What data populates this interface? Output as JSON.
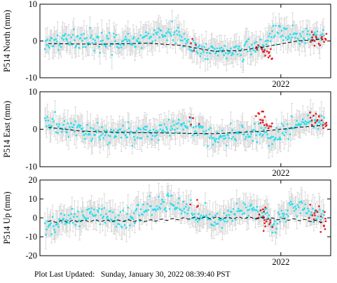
{
  "footer_text": "Plot Last Updated:   Sunday, January 30, 2022 08:39:40 PST",
  "colors": {
    "cyan_points": "#22e0ee",
    "red_points": "#e8141a",
    "error_bars": "#d3d3d3",
    "model_line": "#000000",
    "frame": "#000000"
  },
  "chart_data": [
    {
      "type": "scatter",
      "ylabel": "P514 North (mm)",
      "ylim": [
        -10,
        10
      ],
      "yticks": [
        -10,
        0,
        10
      ],
      "xlim": [
        2020.55,
        2022.3
      ],
      "xticks": [
        2022
      ],
      "xticklabels": [
        "2022"
      ],
      "series": [
        {
          "name": "",
          "color": "cyan",
          "style": "points with grey error bars",
          "x": [
            2020.6,
            2020.75,
            2020.9,
            2021.05,
            2021.2,
            2021.35,
            2021.45,
            2021.6,
            2021.75,
            2021.9,
            2021.95,
            2022.05,
            2022.15
          ],
          "y": [
            -0.5,
            0.8,
            0.2,
            -1.0,
            1.0,
            2.5,
            -1.5,
            -2.8,
            -2.5,
            -1.5,
            2.5,
            1.5,
            1.0
          ]
        },
        {
          "name": "",
          "color": "red",
          "style": "points",
          "x": [
            2021.48,
            2021.88,
            2021.92,
            2022.2,
            2022.25
          ],
          "y": [
            -2.0,
            -2.5,
            -3.5,
            1.0,
            0.5
          ]
        },
        {
          "name": "",
          "color": "black",
          "style": "dashed model",
          "x": [
            2020.6,
            2020.9,
            2021.2,
            2021.4,
            2021.6,
            2021.75,
            2021.9,
            2022.1,
            2022.25
          ],
          "y": [
            -0.7,
            -0.9,
            -0.6,
            -1.2,
            -2.8,
            -2.6,
            -1.6,
            0.0,
            0.5
          ]
        }
      ]
    },
    {
      "type": "scatter",
      "ylabel": "P514 East (mm)",
      "ylim": [
        -10,
        10
      ],
      "yticks": [
        -10,
        0,
        10
      ],
      "xlim": [
        2020.55,
        2022.3
      ],
      "xticks": [
        2022
      ],
      "xticklabels": [
        "2022"
      ],
      "series": [
        {
          "name": "",
          "color": "cyan",
          "style": "points with grey error bars",
          "x": [
            2020.6,
            2020.75,
            2020.9,
            2021.05,
            2021.2,
            2021.35,
            2021.45,
            2021.6,
            2021.75,
            2021.9,
            2021.95,
            2022.05,
            2022.15
          ],
          "y": [
            2.0,
            0.0,
            -1.5,
            -1.0,
            -1.0,
            0.5,
            1.0,
            -2.0,
            -1.5,
            -1.0,
            -3.0,
            0.5,
            2.0
          ]
        },
        {
          "name": "",
          "color": "red",
          "style": "points",
          "x": [
            2021.48,
            2021.88,
            2021.92,
            2022.2,
            2022.25
          ],
          "y": [
            3.0,
            3.0,
            1.0,
            3.0,
            1.5
          ]
        },
        {
          "name": "",
          "color": "black",
          "style": "dashed model",
          "x": [
            2020.6,
            2020.8,
            2021.0,
            2021.3,
            2021.6,
            2021.9,
            2022.1,
            2022.25
          ],
          "y": [
            0.5,
            -0.5,
            -0.8,
            -1.0,
            -1.2,
            -0.5,
            0.5,
            1.0
          ]
        }
      ]
    },
    {
      "type": "scatter",
      "ylabel": "P514 Up (mm)",
      "ylim": [
        -20,
        20
      ],
      "yticks": [
        -20,
        -10,
        0,
        10,
        20
      ],
      "xlim": [
        2020.55,
        2022.3
      ],
      "xticks": [
        2022
      ],
      "xticklabels": [
        "2022"
      ],
      "series": [
        {
          "name": "",
          "color": "cyan",
          "style": "points with grey error bars",
          "x": [
            2020.6,
            2020.75,
            2020.9,
            2021.05,
            2021.2,
            2021.35,
            2021.45,
            2021.6,
            2021.75,
            2021.9,
            2021.95,
            2022.05,
            2022.15
          ],
          "y": [
            -5.0,
            0.0,
            2.0,
            -2.0,
            5.0,
            8.0,
            3.0,
            -2.0,
            4.0,
            2.0,
            -5.0,
            6.0,
            3.0
          ]
        },
        {
          "name": "",
          "color": "red",
          "style": "points",
          "x": [
            2021.48,
            2021.88,
            2021.92,
            2022.2,
            2022.25
          ],
          "y": [
            8.0,
            2.0,
            -3.0,
            3.0,
            -2.0
          ]
        },
        {
          "name": "",
          "color": "black",
          "style": "dashed model",
          "x": [
            2020.6,
            2020.9,
            2021.2,
            2021.5,
            2021.8,
            2022.1,
            2022.25
          ],
          "y": [
            -2.0,
            -1.5,
            -1.5,
            0.0,
            0.0,
            -1.0,
            -2.0
          ]
        }
      ]
    }
  ]
}
